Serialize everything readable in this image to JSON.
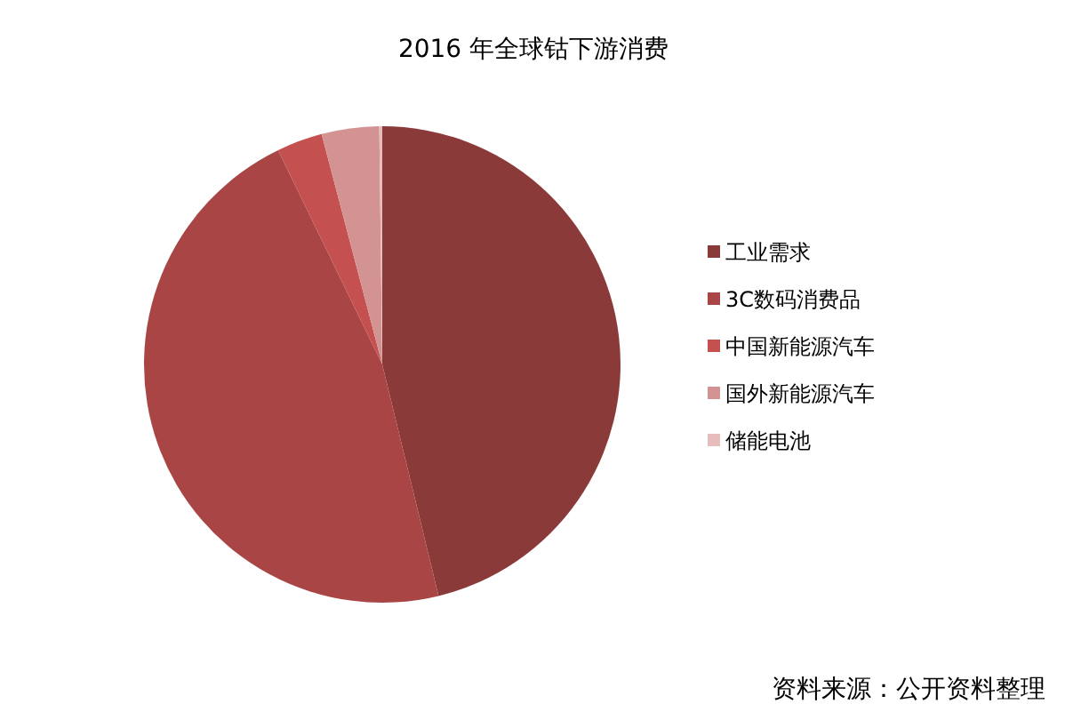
{
  "chart_data": {
    "type": "pie",
    "title": "2016 年全球钴下游消费",
    "categories": [
      "工业需求",
      "3C数码消费品",
      "中国新能源汽车",
      "国外新能源汽车",
      "储能电池"
    ],
    "values": [
      46.2,
      46.6,
      3.1,
      3.9,
      0.2
    ],
    "colors": [
      "#8b3a3a",
      "#a94645",
      "#c4504f",
      "#d49393",
      "#e6bcbc"
    ],
    "legend": "right",
    "annotations": [
      "资料来源：公开资料整理"
    ]
  }
}
